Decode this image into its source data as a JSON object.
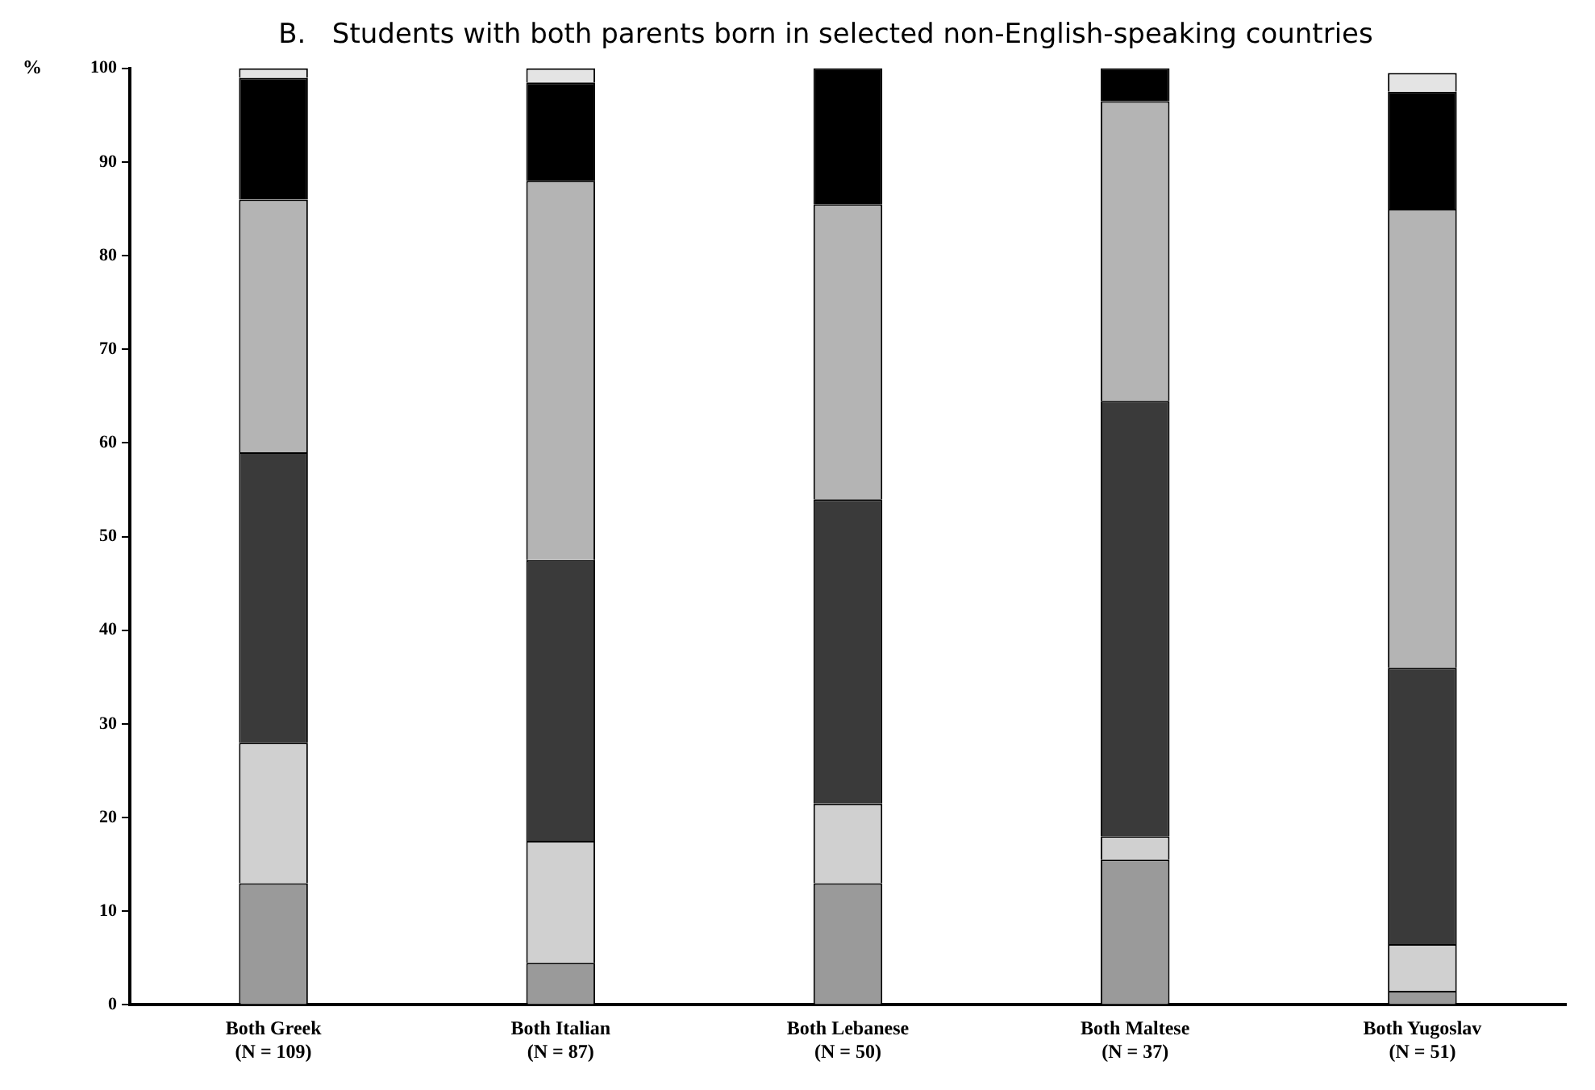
{
  "chart_data": {
    "type": "bar",
    "title": "B.   Students with both parents born in selected non-English-speaking countries",
    "ylabel": "%",
    "categories": [
      "Both Greek\n(N = 109)",
      "Both Italian\n(N = 87)",
      "Both Lebanese\n(N = 50)",
      "Both Maltese\n(N = 37)",
      "Both Yugoslav\n(N = 51)"
    ],
    "stacked": true,
    "ylim": [
      0,
      100
    ],
    "yticks": [
      0,
      10,
      20,
      30,
      40,
      50,
      60,
      70,
      80,
      90,
      100
    ],
    "grid": false,
    "legend": false,
    "series": [
      {
        "color": "#9a9a9a",
        "values": [
          13,
          4.5,
          13,
          15.5,
          1.5
        ]
      },
      {
        "color": "#d0d0d0",
        "values": [
          15,
          13,
          8.5,
          2.5,
          5
        ]
      },
      {
        "color": "#3a3a3a",
        "values": [
          31,
          30,
          32.5,
          46.5,
          29.5
        ]
      },
      {
        "color": "#b4b4b4",
        "values": [
          27,
          40.5,
          31.5,
          32,
          49
        ]
      },
      {
        "color": "#000000",
        "values": [
          13,
          10.5,
          14.5,
          3.5,
          12.5
        ]
      },
      {
        "color": "#e4e4e4",
        "values": [
          1,
          1.5,
          0,
          0,
          2
        ]
      }
    ]
  }
}
